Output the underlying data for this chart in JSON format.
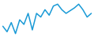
{
  "values": [
    28,
    22,
    32,
    20,
    35,
    30,
    42,
    24,
    42,
    38,
    46,
    40,
    50,
    52,
    46,
    42,
    45,
    48,
    52,
    46,
    38,
    42
  ],
  "line_color": "#1a9ad6",
  "background_color": "#ffffff",
  "linewidth": 1.1
}
